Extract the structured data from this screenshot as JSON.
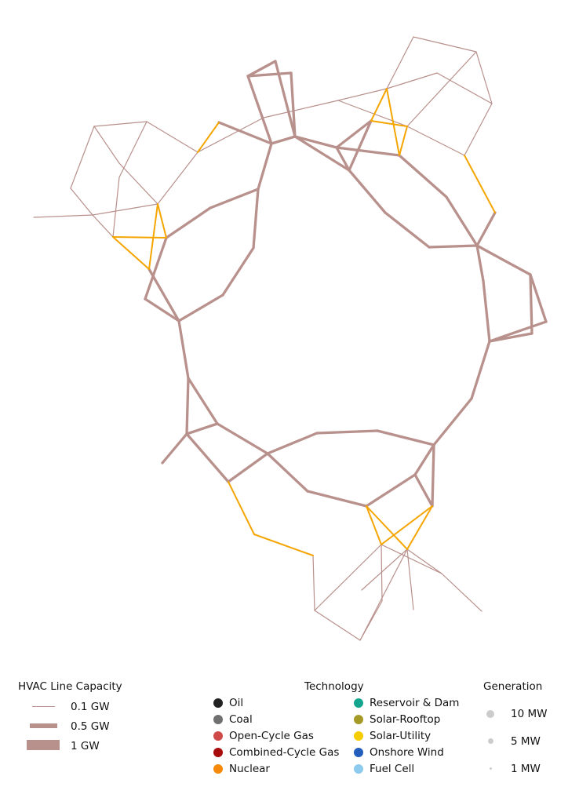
{
  "colors": {
    "hvac": "#b8908c",
    "dc": "#f5a500"
  },
  "network": {
    "hvac_thin": [
      [
        [
          43,
          277
        ],
        [
          118,
          274
        ]
      ],
      [
        [
          118,
          274
        ],
        [
          90,
          240
        ]
      ],
      [
        [
          90,
          240
        ],
        [
          120,
          161
        ]
      ],
      [
        [
          120,
          161
        ],
        [
          187,
          155
        ]
      ],
      [
        [
          187,
          155
        ],
        [
          252,
          194
        ]
      ],
      [
        [
          252,
          194
        ],
        [
          201,
          260
        ]
      ],
      [
        [
          201,
          260
        ],
        [
          118,
          274
        ]
      ],
      [
        [
          118,
          274
        ],
        [
          144,
          302
        ]
      ],
      [
        [
          144,
          302
        ],
        [
          152,
          226
        ]
      ],
      [
        [
          152,
          226
        ],
        [
          187,
          155
        ]
      ],
      [
        [
          120,
          161
        ],
        [
          152,
          208
        ]
      ],
      [
        [
          152,
          208
        ],
        [
          201,
          260
        ]
      ],
      [
        [
          252,
          194
        ],
        [
          336,
          150
        ]
      ],
      [
        [
          336,
          150
        ],
        [
          431,
          128
        ]
      ],
      [
        [
          431,
          128
        ],
        [
          493,
          113
        ]
      ],
      [
        [
          493,
          113
        ],
        [
          527,
          47
        ]
      ],
      [
        [
          527,
          47
        ],
        [
          607,
          66
        ]
      ],
      [
        [
          607,
          66
        ],
        [
          627,
          132
        ]
      ],
      [
        [
          627,
          132
        ],
        [
          557,
          93
        ]
      ],
      [
        [
          557,
          93
        ],
        [
          493,
          113
        ]
      ],
      [
        [
          431,
          128
        ],
        [
          519,
          161
        ]
      ],
      [
        [
          519,
          161
        ],
        [
          607,
          66
        ]
      ],
      [
        [
          519,
          161
        ],
        [
          592,
          198
        ]
      ],
      [
        [
          592,
          198
        ],
        [
          627,
          132
        ]
      ],
      [
        [
          486,
          694
        ],
        [
          401,
          778
        ]
      ],
      [
        [
          401,
          778
        ],
        [
          399,
          708
        ]
      ],
      [
        [
          486,
          694
        ],
        [
          487,
          766
        ]
      ],
      [
        [
          487,
          766
        ],
        [
          459,
          816
        ]
      ],
      [
        [
          459,
          816
        ],
        [
          401,
          778
        ]
      ],
      [
        [
          459,
          816
        ],
        [
          519,
          700
        ]
      ],
      [
        [
          519,
          700
        ],
        [
          527,
          777
        ]
      ],
      [
        [
          519,
          700
        ],
        [
          461,
          752
        ]
      ],
      [
        [
          486,
          694
        ],
        [
          563,
          731
        ]
      ],
      [
        [
          563,
          731
        ],
        [
          614,
          779
        ]
      ],
      [
        [
          563,
          731
        ],
        [
          519,
          700
        ]
      ]
    ],
    "hvac_thick": [
      [
        [
          316,
          97
        ],
        [
          351,
          78
        ]
      ],
      [
        [
          351,
          78
        ],
        [
          376,
          174
        ]
      ],
      [
        [
          316,
          97
        ],
        [
          346,
          183
        ]
      ],
      [
        [
          316,
          97
        ],
        [
          371,
          93
        ]
      ],
      [
        [
          371,
          93
        ],
        [
          376,
          174
        ]
      ],
      [
        [
          376,
          174
        ],
        [
          346,
          183
        ]
      ],
      [
        [
          376,
          174
        ],
        [
          429,
          188
        ]
      ],
      [
        [
          429,
          188
        ],
        [
          473,
          154
        ]
      ],
      [
        [
          473,
          154
        ],
        [
          445,
          217
        ]
      ],
      [
        [
          445,
          217
        ],
        [
          429,
          188
        ]
      ],
      [
        [
          429,
          188
        ],
        [
          509,
          198
        ]
      ],
      [
        [
          376,
          174
        ],
        [
          445,
          217
        ]
      ],
      [
        [
          445,
          217
        ],
        [
          491,
          271
        ]
      ],
      [
        [
          491,
          271
        ],
        [
          547,
          315
        ]
      ],
      [
        [
          547,
          315
        ],
        [
          608,
          313
        ]
      ],
      [
        [
          509,
          198
        ],
        [
          569,
          251
        ]
      ],
      [
        [
          569,
          251
        ],
        [
          608,
          313
        ]
      ],
      [
        [
          608,
          313
        ],
        [
          631,
          271
        ]
      ],
      [
        [
          608,
          313
        ],
        [
          616,
          358
        ]
      ],
      [
        [
          616,
          358
        ],
        [
          624,
          435
        ]
      ],
      [
        [
          608,
          313
        ],
        [
          676,
          350
        ]
      ],
      [
        [
          676,
          350
        ],
        [
          696,
          410
        ]
      ],
      [
        [
          696,
          410
        ],
        [
          624,
          435
        ]
      ],
      [
        [
          676,
          350
        ],
        [
          678,
          425
        ]
      ],
      [
        [
          678,
          425
        ],
        [
          624,
          435
        ]
      ],
      [
        [
          624,
          435
        ],
        [
          601,
          508
        ]
      ],
      [
        [
          601,
          508
        ],
        [
          553,
          567
        ]
      ],
      [
        [
          553,
          567
        ],
        [
          551,
          645
        ]
      ],
      [
        [
          553,
          567
        ],
        [
          481,
          549
        ]
      ],
      [
        [
          481,
          549
        ],
        [
          404,
          552
        ]
      ],
      [
        [
          404,
          552
        ],
        [
          341,
          578
        ]
      ],
      [
        [
          553,
          567
        ],
        [
          529,
          605
        ]
      ],
      [
        [
          529,
          605
        ],
        [
          551,
          645
        ]
      ],
      [
        [
          529,
          605
        ],
        [
          467,
          645
        ]
      ],
      [
        [
          467,
          645
        ],
        [
          392,
          626
        ]
      ],
      [
        [
          392,
          626
        ],
        [
          341,
          578
        ]
      ],
      [
        [
          341,
          578
        ],
        [
          277,
          540
        ]
      ],
      [
        [
          277,
          540
        ],
        [
          238,
          553
        ]
      ],
      [
        [
          238,
          553
        ],
        [
          207,
          590
        ]
      ],
      [
        [
          341,
          578
        ],
        [
          291,
          614
        ]
      ],
      [
        [
          291,
          614
        ],
        [
          238,
          553
        ]
      ],
      [
        [
          238,
          553
        ],
        [
          240,
          482
        ]
      ],
      [
        [
          240,
          482
        ],
        [
          277,
          540
        ]
      ],
      [
        [
          240,
          482
        ],
        [
          228,
          409
        ]
      ],
      [
        [
          228,
          409
        ],
        [
          185,
          381
        ]
      ],
      [
        [
          185,
          381
        ],
        [
          212,
          303
        ]
      ],
      [
        [
          212,
          303
        ],
        [
          268,
          265
        ]
      ],
      [
        [
          268,
          265
        ],
        [
          329,
          241
        ]
      ],
      [
        [
          329,
          241
        ],
        [
          346,
          183
        ]
      ],
      [
        [
          346,
          183
        ],
        [
          279,
          156
        ]
      ],
      [
        [
          329,
          241
        ],
        [
          323,
          316
        ]
      ],
      [
        [
          323,
          316
        ],
        [
          284,
          376
        ]
      ],
      [
        [
          284,
          376
        ],
        [
          228,
          409
        ]
      ],
      [
        [
          228,
          409
        ],
        [
          190,
          343
        ]
      ]
    ],
    "dc": [
      [
        [
          252,
          194
        ],
        [
          279,
          156
        ]
      ],
      [
        [
          201,
          260
        ],
        [
          212,
          303
        ]
      ],
      [
        [
          201,
          260
        ],
        [
          190,
          343
        ]
      ],
      [
        [
          212,
          303
        ],
        [
          144,
          302
        ]
      ],
      [
        [
          144,
          302
        ],
        [
          190,
          343
        ]
      ],
      [
        [
          473,
          154
        ],
        [
          519,
          161
        ]
      ],
      [
        [
          473,
          154
        ],
        [
          493,
          113
        ]
      ],
      [
        [
          493,
          113
        ],
        [
          509,
          198
        ]
      ],
      [
        [
          519,
          161
        ],
        [
          509,
          198
        ]
      ],
      [
        [
          592,
          198
        ],
        [
          631,
          271
        ]
      ],
      [
        [
          467,
          645
        ],
        [
          486,
          694
        ]
      ],
      [
        [
          467,
          645
        ],
        [
          519,
          700
        ]
      ],
      [
        [
          551,
          645
        ],
        [
          486,
          694
        ]
      ],
      [
        [
          551,
          645
        ],
        [
          519,
          700
        ]
      ],
      [
        [
          324,
          681
        ],
        [
          399,
          708
        ]
      ],
      [
        [
          291,
          614
        ],
        [
          324,
          681
        ]
      ]
    ]
  },
  "legend": {
    "capacity": {
      "title": "HVAC Line Capacity",
      "items": [
        {
          "label": "0.1 GW",
          "width": 1
        },
        {
          "label": "0.5 GW",
          "width": 5
        },
        {
          "label": "1 GW",
          "width": 10
        }
      ]
    },
    "technology": {
      "title": "Technology",
      "col1": [
        {
          "label": "Oil",
          "color": "#222222"
        },
        {
          "label": "Coal",
          "color": "#707070"
        },
        {
          "label": "Open-Cycle Gas",
          "color": "#d04a4a"
        },
        {
          "label": "Combined-Cycle Gas",
          "color": "#a80b0b"
        },
        {
          "label": "Nuclear",
          "color": "#f58a0a"
        }
      ],
      "col2": [
        {
          "label": "Reservoir & Dam",
          "color": "#13a58e"
        },
        {
          "label": "Solar-Rooftop",
          "color": "#a69a27"
        },
        {
          "label": "Solar-Utility",
          "color": "#f5cd00"
        },
        {
          "label": "Onshore Wind",
          "color": "#235ebc"
        },
        {
          "label": "Fuel Cell",
          "color": "#8ccaee"
        }
      ]
    },
    "generation": {
      "title": "Generation",
      "items": [
        {
          "label": "10 MW",
          "size": 10
        },
        {
          "label": "5 MW",
          "size": 5
        },
        {
          "label": "1 MW",
          "size": 1
        }
      ]
    }
  }
}
